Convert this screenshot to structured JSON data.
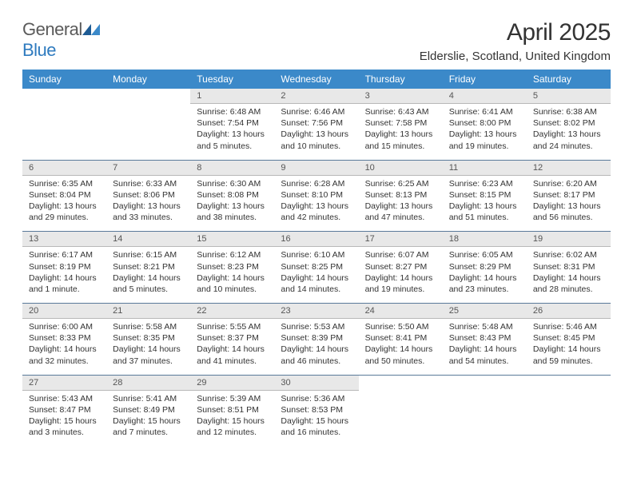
{
  "logo": {
    "general": "General",
    "blue": "Blue"
  },
  "header": {
    "title": "April 2025",
    "location": "Elderslie, Scotland, United Kingdom"
  },
  "colors": {
    "header_bg": "#3b89c9",
    "header_text": "#ffffff",
    "daynum_bg": "#e8e8e8",
    "daynum_text": "#555555",
    "body_text": "#333333",
    "week_divider": "#5a7a9a",
    "logo_blue": "#2f7bbf",
    "logo_gray": "#5a5a5a"
  },
  "day_names": [
    "Sunday",
    "Monday",
    "Tuesday",
    "Wednesday",
    "Thursday",
    "Friday",
    "Saturday"
  ],
  "weeks": [
    [
      null,
      null,
      {
        "n": "1",
        "sunrise": "Sunrise: 6:48 AM",
        "sunset": "Sunset: 7:54 PM",
        "daylight": "Daylight: 13 hours and 5 minutes."
      },
      {
        "n": "2",
        "sunrise": "Sunrise: 6:46 AM",
        "sunset": "Sunset: 7:56 PM",
        "daylight": "Daylight: 13 hours and 10 minutes."
      },
      {
        "n": "3",
        "sunrise": "Sunrise: 6:43 AM",
        "sunset": "Sunset: 7:58 PM",
        "daylight": "Daylight: 13 hours and 15 minutes."
      },
      {
        "n": "4",
        "sunrise": "Sunrise: 6:41 AM",
        "sunset": "Sunset: 8:00 PM",
        "daylight": "Daylight: 13 hours and 19 minutes."
      },
      {
        "n": "5",
        "sunrise": "Sunrise: 6:38 AM",
        "sunset": "Sunset: 8:02 PM",
        "daylight": "Daylight: 13 hours and 24 minutes."
      }
    ],
    [
      {
        "n": "6",
        "sunrise": "Sunrise: 6:35 AM",
        "sunset": "Sunset: 8:04 PM",
        "daylight": "Daylight: 13 hours and 29 minutes."
      },
      {
        "n": "7",
        "sunrise": "Sunrise: 6:33 AM",
        "sunset": "Sunset: 8:06 PM",
        "daylight": "Daylight: 13 hours and 33 minutes."
      },
      {
        "n": "8",
        "sunrise": "Sunrise: 6:30 AM",
        "sunset": "Sunset: 8:08 PM",
        "daylight": "Daylight: 13 hours and 38 minutes."
      },
      {
        "n": "9",
        "sunrise": "Sunrise: 6:28 AM",
        "sunset": "Sunset: 8:10 PM",
        "daylight": "Daylight: 13 hours and 42 minutes."
      },
      {
        "n": "10",
        "sunrise": "Sunrise: 6:25 AM",
        "sunset": "Sunset: 8:13 PM",
        "daylight": "Daylight: 13 hours and 47 minutes."
      },
      {
        "n": "11",
        "sunrise": "Sunrise: 6:23 AM",
        "sunset": "Sunset: 8:15 PM",
        "daylight": "Daylight: 13 hours and 51 minutes."
      },
      {
        "n": "12",
        "sunrise": "Sunrise: 6:20 AM",
        "sunset": "Sunset: 8:17 PM",
        "daylight": "Daylight: 13 hours and 56 minutes."
      }
    ],
    [
      {
        "n": "13",
        "sunrise": "Sunrise: 6:17 AM",
        "sunset": "Sunset: 8:19 PM",
        "daylight": "Daylight: 14 hours and 1 minute."
      },
      {
        "n": "14",
        "sunrise": "Sunrise: 6:15 AM",
        "sunset": "Sunset: 8:21 PM",
        "daylight": "Daylight: 14 hours and 5 minutes."
      },
      {
        "n": "15",
        "sunrise": "Sunrise: 6:12 AM",
        "sunset": "Sunset: 8:23 PM",
        "daylight": "Daylight: 14 hours and 10 minutes."
      },
      {
        "n": "16",
        "sunrise": "Sunrise: 6:10 AM",
        "sunset": "Sunset: 8:25 PM",
        "daylight": "Daylight: 14 hours and 14 minutes."
      },
      {
        "n": "17",
        "sunrise": "Sunrise: 6:07 AM",
        "sunset": "Sunset: 8:27 PM",
        "daylight": "Daylight: 14 hours and 19 minutes."
      },
      {
        "n": "18",
        "sunrise": "Sunrise: 6:05 AM",
        "sunset": "Sunset: 8:29 PM",
        "daylight": "Daylight: 14 hours and 23 minutes."
      },
      {
        "n": "19",
        "sunrise": "Sunrise: 6:02 AM",
        "sunset": "Sunset: 8:31 PM",
        "daylight": "Daylight: 14 hours and 28 minutes."
      }
    ],
    [
      {
        "n": "20",
        "sunrise": "Sunrise: 6:00 AM",
        "sunset": "Sunset: 8:33 PM",
        "daylight": "Daylight: 14 hours and 32 minutes."
      },
      {
        "n": "21",
        "sunrise": "Sunrise: 5:58 AM",
        "sunset": "Sunset: 8:35 PM",
        "daylight": "Daylight: 14 hours and 37 minutes."
      },
      {
        "n": "22",
        "sunrise": "Sunrise: 5:55 AM",
        "sunset": "Sunset: 8:37 PM",
        "daylight": "Daylight: 14 hours and 41 minutes."
      },
      {
        "n": "23",
        "sunrise": "Sunrise: 5:53 AM",
        "sunset": "Sunset: 8:39 PM",
        "daylight": "Daylight: 14 hours and 46 minutes."
      },
      {
        "n": "24",
        "sunrise": "Sunrise: 5:50 AM",
        "sunset": "Sunset: 8:41 PM",
        "daylight": "Daylight: 14 hours and 50 minutes."
      },
      {
        "n": "25",
        "sunrise": "Sunrise: 5:48 AM",
        "sunset": "Sunset: 8:43 PM",
        "daylight": "Daylight: 14 hours and 54 minutes."
      },
      {
        "n": "26",
        "sunrise": "Sunrise: 5:46 AM",
        "sunset": "Sunset: 8:45 PM",
        "daylight": "Daylight: 14 hours and 59 minutes."
      }
    ],
    [
      {
        "n": "27",
        "sunrise": "Sunrise: 5:43 AM",
        "sunset": "Sunset: 8:47 PM",
        "daylight": "Daylight: 15 hours and 3 minutes."
      },
      {
        "n": "28",
        "sunrise": "Sunrise: 5:41 AM",
        "sunset": "Sunset: 8:49 PM",
        "daylight": "Daylight: 15 hours and 7 minutes."
      },
      {
        "n": "29",
        "sunrise": "Sunrise: 5:39 AM",
        "sunset": "Sunset: 8:51 PM",
        "daylight": "Daylight: 15 hours and 12 minutes."
      },
      {
        "n": "30",
        "sunrise": "Sunrise: 5:36 AM",
        "sunset": "Sunset: 8:53 PM",
        "daylight": "Daylight: 15 hours and 16 minutes."
      },
      null,
      null,
      null
    ]
  ]
}
